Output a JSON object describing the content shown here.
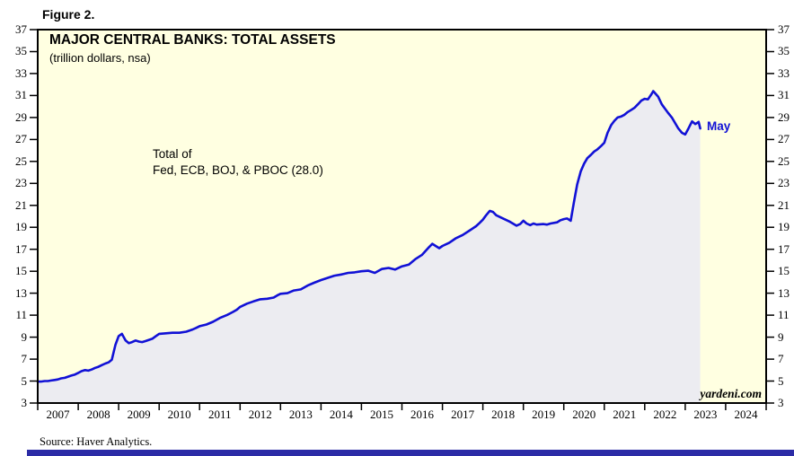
{
  "figure_label": "Figure 2.",
  "source": "Source: Haver Analytics.",
  "chart": {
    "title": "MAJOR CENTRAL BANKS: TOTAL ASSETS",
    "subtitle": "(trillion dollars, nsa)",
    "annotation_line1": "Total of",
    "annotation_line2": "Fed, ECB, BOJ, & PBOC (28.0)",
    "last_point_label": "May",
    "last_point_value": 28.0,
    "watermark": "yardeni.com"
  },
  "chart_data": {
    "type": "area",
    "title": "MAJOR CENTRAL BANKS: TOTAL ASSETS",
    "subtitle": "(trillion dollars, nsa)",
    "series_name": "Total of Fed, ECB, BOJ, & PBOC",
    "units": "trillion dollars, nsa",
    "xlabel": "",
    "ylabel": "",
    "xlim": [
      2007,
      2025
    ],
    "ylim": [
      3,
      37
    ],
    "grid": false,
    "legend": "none",
    "y_ticks": [
      3,
      5,
      7,
      9,
      11,
      13,
      15,
      17,
      19,
      21,
      23,
      25,
      27,
      29,
      31,
      33,
      35,
      37
    ],
    "x_tick_years": [
      2007,
      2008,
      2009,
      2010,
      2011,
      2012,
      2013,
      2014,
      2015,
      2016,
      2017,
      2018,
      2019,
      2020,
      2021,
      2022,
      2023,
      2024
    ],
    "x": [
      2007.0,
      2007.08,
      2007.17,
      2007.25,
      2007.33,
      2007.42,
      2007.5,
      2007.58,
      2007.67,
      2007.75,
      2007.83,
      2007.92,
      2008.0,
      2008.08,
      2008.17,
      2008.25,
      2008.33,
      2008.42,
      2008.5,
      2008.58,
      2008.67,
      2008.75,
      2008.83,
      2008.92,
      2009.0,
      2009.08,
      2009.17,
      2009.25,
      2009.33,
      2009.42,
      2009.5,
      2009.58,
      2009.67,
      2009.75,
      2009.83,
      2009.92,
      2010.0,
      2010.17,
      2010.33,
      2010.5,
      2010.67,
      2010.83,
      2010.92,
      2011.0,
      2011.17,
      2011.33,
      2011.5,
      2011.67,
      2011.83,
      2011.92,
      2012.0,
      2012.17,
      2012.33,
      2012.5,
      2012.67,
      2012.83,
      2012.92,
      2013.0,
      2013.17,
      2013.33,
      2013.5,
      2013.67,
      2013.83,
      2014.0,
      2014.17,
      2014.33,
      2014.5,
      2014.67,
      2014.83,
      2015.0,
      2015.17,
      2015.33,
      2015.5,
      2015.67,
      2015.83,
      2016.0,
      2016.17,
      2016.33,
      2016.5,
      2016.67,
      2016.75,
      2016.92,
      2017.0,
      2017.17,
      2017.33,
      2017.5,
      2017.67,
      2017.83,
      2017.92,
      2018.0,
      2018.08,
      2018.17,
      2018.25,
      2018.33,
      2018.5,
      2018.67,
      2018.83,
      2018.92,
      2019.0,
      2019.08,
      2019.17,
      2019.25,
      2019.33,
      2019.5,
      2019.58,
      2019.67,
      2019.83,
      2019.92,
      2020.0,
      2020.08,
      2020.17,
      2020.25,
      2020.33,
      2020.42,
      2020.5,
      2020.58,
      2020.67,
      2020.75,
      2020.83,
      2020.92,
      2021.0,
      2021.08,
      2021.17,
      2021.25,
      2021.33,
      2021.42,
      2021.5,
      2021.58,
      2021.67,
      2021.75,
      2021.83,
      2021.92,
      2022.0,
      2022.08,
      2022.17,
      2022.21,
      2022.33,
      2022.42,
      2022.5,
      2022.58,
      2022.67,
      2022.75,
      2022.83,
      2022.92,
      2023.0,
      2023.08,
      2023.17,
      2023.25,
      2023.33,
      2023.37
    ],
    "values": [
      4.95,
      4.95,
      5.0,
      5.0,
      5.05,
      5.1,
      5.15,
      5.25,
      5.3,
      5.4,
      5.5,
      5.6,
      5.75,
      5.9,
      6.0,
      5.95,
      6.05,
      6.2,
      6.3,
      6.45,
      6.6,
      6.7,
      6.95,
      8.3,
      9.1,
      9.3,
      8.7,
      8.45,
      8.55,
      8.7,
      8.6,
      8.55,
      8.65,
      8.75,
      8.85,
      9.1,
      9.3,
      9.35,
      9.4,
      9.4,
      9.5,
      9.7,
      9.85,
      10.0,
      10.15,
      10.4,
      10.75,
      11.0,
      11.3,
      11.5,
      11.75,
      12.05,
      12.25,
      12.45,
      12.5,
      12.6,
      12.8,
      12.95,
      13.0,
      13.25,
      13.35,
      13.7,
      13.95,
      14.2,
      14.4,
      14.6,
      14.7,
      14.85,
      14.9,
      15.0,
      15.05,
      14.85,
      15.2,
      15.3,
      15.15,
      15.45,
      15.6,
      16.1,
      16.5,
      17.2,
      17.5,
      17.1,
      17.3,
      17.6,
      18.0,
      18.3,
      18.7,
      19.1,
      19.4,
      19.7,
      20.1,
      20.5,
      20.4,
      20.1,
      19.8,
      19.5,
      19.15,
      19.3,
      19.6,
      19.35,
      19.2,
      19.35,
      19.25,
      19.3,
      19.25,
      19.35,
      19.45,
      19.65,
      19.75,
      19.8,
      19.6,
      21.3,
      22.9,
      24.1,
      24.8,
      25.3,
      25.6,
      25.9,
      26.1,
      26.4,
      26.7,
      27.6,
      28.3,
      28.7,
      29.0,
      29.1,
      29.25,
      29.5,
      29.7,
      29.9,
      30.2,
      30.55,
      30.7,
      30.65,
      31.15,
      31.4,
      30.9,
      30.2,
      29.8,
      29.4,
      29.0,
      28.5,
      28.0,
      27.6,
      27.45,
      28.0,
      28.65,
      28.4,
      28.6,
      28.0
    ],
    "colors": {
      "line": "#1111d6",
      "area_fill": "#ececf1",
      "plot_bg": "#ffffe1",
      "axis": "#000000",
      "accent_text": "#1111d6",
      "bottom_bar": "#2b2ba6"
    }
  }
}
